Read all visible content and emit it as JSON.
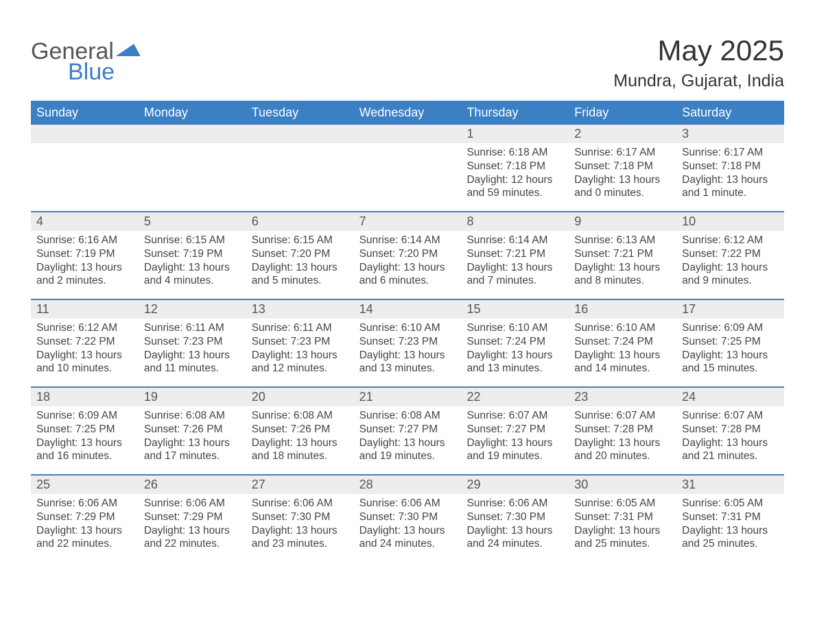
{
  "brand": {
    "part1": "General",
    "part2": "Blue"
  },
  "title": "May 2025",
  "location": "Mundra, Gujarat, India",
  "colors": {
    "header_bg": "#3b7fc4",
    "daynum_bg": "#ededed",
    "text": "#444444",
    "background": "#ffffff"
  },
  "weekdays": [
    "Sunday",
    "Monday",
    "Tuesday",
    "Wednesday",
    "Thursday",
    "Friday",
    "Saturday"
  ],
  "weeks": [
    [
      {
        "empty": true
      },
      {
        "empty": true
      },
      {
        "empty": true
      },
      {
        "empty": true
      },
      {
        "n": "1",
        "sunrise": "6:18 AM",
        "sunset": "7:18 PM",
        "daylight": "12 hours and 59 minutes."
      },
      {
        "n": "2",
        "sunrise": "6:17 AM",
        "sunset": "7:18 PM",
        "daylight": "13 hours and 0 minutes."
      },
      {
        "n": "3",
        "sunrise": "6:17 AM",
        "sunset": "7:18 PM",
        "daylight": "13 hours and 1 minute."
      }
    ],
    [
      {
        "n": "4",
        "sunrise": "6:16 AM",
        "sunset": "7:19 PM",
        "daylight": "13 hours and 2 minutes."
      },
      {
        "n": "5",
        "sunrise": "6:15 AM",
        "sunset": "7:19 PM",
        "daylight": "13 hours and 4 minutes."
      },
      {
        "n": "6",
        "sunrise": "6:15 AM",
        "sunset": "7:20 PM",
        "daylight": "13 hours and 5 minutes."
      },
      {
        "n": "7",
        "sunrise": "6:14 AM",
        "sunset": "7:20 PM",
        "daylight": "13 hours and 6 minutes."
      },
      {
        "n": "8",
        "sunrise": "6:14 AM",
        "sunset": "7:21 PM",
        "daylight": "13 hours and 7 minutes."
      },
      {
        "n": "9",
        "sunrise": "6:13 AM",
        "sunset": "7:21 PM",
        "daylight": "13 hours and 8 minutes."
      },
      {
        "n": "10",
        "sunrise": "6:12 AM",
        "sunset": "7:22 PM",
        "daylight": "13 hours and 9 minutes."
      }
    ],
    [
      {
        "n": "11",
        "sunrise": "6:12 AM",
        "sunset": "7:22 PM",
        "daylight": "13 hours and 10 minutes."
      },
      {
        "n": "12",
        "sunrise": "6:11 AM",
        "sunset": "7:23 PM",
        "daylight": "13 hours and 11 minutes."
      },
      {
        "n": "13",
        "sunrise": "6:11 AM",
        "sunset": "7:23 PM",
        "daylight": "13 hours and 12 minutes."
      },
      {
        "n": "14",
        "sunrise": "6:10 AM",
        "sunset": "7:23 PM",
        "daylight": "13 hours and 13 minutes."
      },
      {
        "n": "15",
        "sunrise": "6:10 AM",
        "sunset": "7:24 PM",
        "daylight": "13 hours and 13 minutes."
      },
      {
        "n": "16",
        "sunrise": "6:10 AM",
        "sunset": "7:24 PM",
        "daylight": "13 hours and 14 minutes."
      },
      {
        "n": "17",
        "sunrise": "6:09 AM",
        "sunset": "7:25 PM",
        "daylight": "13 hours and 15 minutes."
      }
    ],
    [
      {
        "n": "18",
        "sunrise": "6:09 AM",
        "sunset": "7:25 PM",
        "daylight": "13 hours and 16 minutes."
      },
      {
        "n": "19",
        "sunrise": "6:08 AM",
        "sunset": "7:26 PM",
        "daylight": "13 hours and 17 minutes."
      },
      {
        "n": "20",
        "sunrise": "6:08 AM",
        "sunset": "7:26 PM",
        "daylight": "13 hours and 18 minutes."
      },
      {
        "n": "21",
        "sunrise": "6:08 AM",
        "sunset": "7:27 PM",
        "daylight": "13 hours and 19 minutes."
      },
      {
        "n": "22",
        "sunrise": "6:07 AM",
        "sunset": "7:27 PM",
        "daylight": "13 hours and 19 minutes."
      },
      {
        "n": "23",
        "sunrise": "6:07 AM",
        "sunset": "7:28 PM",
        "daylight": "13 hours and 20 minutes."
      },
      {
        "n": "24",
        "sunrise": "6:07 AM",
        "sunset": "7:28 PM",
        "daylight": "13 hours and 21 minutes."
      }
    ],
    [
      {
        "n": "25",
        "sunrise": "6:06 AM",
        "sunset": "7:29 PM",
        "daylight": "13 hours and 22 minutes."
      },
      {
        "n": "26",
        "sunrise": "6:06 AM",
        "sunset": "7:29 PM",
        "daylight": "13 hours and 22 minutes."
      },
      {
        "n": "27",
        "sunrise": "6:06 AM",
        "sunset": "7:30 PM",
        "daylight": "13 hours and 23 minutes."
      },
      {
        "n": "28",
        "sunrise": "6:06 AM",
        "sunset": "7:30 PM",
        "daylight": "13 hours and 24 minutes."
      },
      {
        "n": "29",
        "sunrise": "6:06 AM",
        "sunset": "7:30 PM",
        "daylight": "13 hours and 24 minutes."
      },
      {
        "n": "30",
        "sunrise": "6:05 AM",
        "sunset": "7:31 PM",
        "daylight": "13 hours and 25 minutes."
      },
      {
        "n": "31",
        "sunrise": "6:05 AM",
        "sunset": "7:31 PM",
        "daylight": "13 hours and 25 minutes."
      }
    ]
  ],
  "labels": {
    "sunrise": "Sunrise: ",
    "sunset": "Sunset: ",
    "daylight": "Daylight: "
  }
}
